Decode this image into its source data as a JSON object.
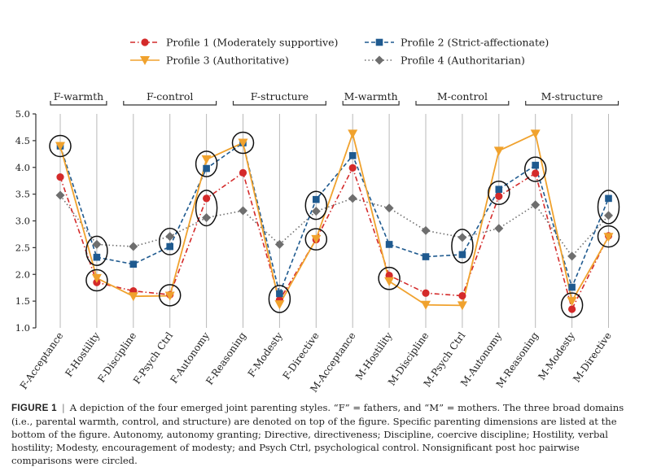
{
  "chart_data": {
    "type": "line",
    "categories": [
      "F-Acceptance",
      "F-Hostility",
      "F-Discipline",
      "F-Psych Ctrl",
      "F-Autonomy",
      "F-Reasoning",
      "F-Modesty",
      "F-Directive",
      "M-Acceptance",
      "M-Hostility",
      "M-Discipline",
      "M-Psych Ctrl",
      "M-Autonomy",
      "M-Reasoning",
      "M-Modesty",
      "M-Directive"
    ],
    "domains": [
      {
        "label": "F-warmth",
        "from": 0,
        "to": 1
      },
      {
        "label": "F-control",
        "from": 2,
        "to": 4
      },
      {
        "label": "F-structure",
        "from": 5,
        "to": 7
      },
      {
        "label": "M-warmth",
        "from": 8,
        "to": 9
      },
      {
        "label": "M-control",
        "from": 10,
        "to": 12
      },
      {
        "label": "M-structure",
        "from": 13,
        "to": 15
      }
    ],
    "ylim": [
      1.0,
      5.0
    ],
    "yticks": [
      "1.0",
      "1.5",
      "2.0",
      "2.5",
      "3.0",
      "3.5",
      "4.0",
      "4.5",
      "5.0"
    ],
    "grid": "vertical lines at categories",
    "legend_position": "top",
    "series": [
      {
        "name": "Profile 1 (Moderately supportive)",
        "color": "#d42a2a",
        "marker": "circle",
        "line": "dash-dot",
        "values": [
          3.82,
          1.85,
          1.69,
          1.62,
          3.42,
          3.9,
          1.52,
          2.65,
          3.99,
          1.98,
          1.65,
          1.6,
          3.46,
          3.89,
          1.35,
          2.72
        ]
      },
      {
        "name": "Profile 2 (Strict-affectionate)",
        "color": "#1f5a8f",
        "marker": "square",
        "line": "dashed",
        "values": [
          4.4,
          2.32,
          2.19,
          2.52,
          3.98,
          4.46,
          1.64,
          3.4,
          4.22,
          2.56,
          2.33,
          2.37,
          3.59,
          4.04,
          1.76,
          3.42
        ]
      },
      {
        "name": "Profile 3 (Authoritative)",
        "color": "#f0a22e",
        "marker": "triangle-down",
        "line": "solid",
        "values": [
          4.4,
          1.93,
          1.59,
          1.6,
          4.15,
          4.46,
          1.44,
          2.66,
          4.63,
          1.87,
          1.43,
          1.42,
          4.31,
          4.63,
          1.5,
          2.7
        ]
      },
      {
        "name": "Profile 4 (Authoritarian)",
        "color": "#6e6e6e",
        "marker": "diamond",
        "line": "dotted",
        "values": [
          3.48,
          2.56,
          2.52,
          2.71,
          3.06,
          3.19,
          2.56,
          3.18,
          3.42,
          3.24,
          2.82,
          2.69,
          2.86,
          3.3,
          2.34,
          3.1
        ]
      }
    ],
    "circled_points": [
      {
        "category": "F-Acceptance",
        "ymin": 4.4,
        "ymax": 4.4
      },
      {
        "category": "F-Hostility",
        "ymin": 2.32,
        "ymax": 2.56
      },
      {
        "category": "F-Hostility",
        "ymin": 1.85,
        "ymax": 1.93
      },
      {
        "category": "F-Psych Ctrl",
        "ymin": 2.52,
        "ymax": 2.71
      },
      {
        "category": "F-Psych Ctrl",
        "ymin": 1.6,
        "ymax": 1.62
      },
      {
        "category": "F-Autonomy",
        "ymin": 3.98,
        "ymax": 4.15
      },
      {
        "category": "F-Autonomy",
        "ymin": 3.06,
        "ymax": 3.42
      },
      {
        "category": "F-Reasoning",
        "ymin": 4.46,
        "ymax": 4.46
      },
      {
        "category": "F-Modesty",
        "ymin": 1.44,
        "ymax": 1.64
      },
      {
        "category": "F-Directive",
        "ymin": 3.18,
        "ymax": 3.4
      },
      {
        "category": "F-Directive",
        "ymin": 2.65,
        "ymax": 2.66
      },
      {
        "category": "M-Hostility",
        "ymin": 1.87,
        "ymax": 1.98
      },
      {
        "category": "M-Psych Ctrl",
        "ymin": 2.37,
        "ymax": 2.69
      },
      {
        "category": "M-Autonomy",
        "ymin": 3.46,
        "ymax": 3.59
      },
      {
        "category": "M-Reasoning",
        "ymin": 3.89,
        "ymax": 4.04
      },
      {
        "category": "M-Modesty",
        "ymin": 1.35,
        "ymax": 1.5
      },
      {
        "category": "M-Directive",
        "ymin": 3.1,
        "ymax": 3.42
      },
      {
        "category": "M-Directive",
        "ymin": 2.7,
        "ymax": 2.72
      }
    ]
  },
  "caption": {
    "label": "FIGURE 1",
    "separator": "|",
    "text": "A depiction of the four emerged joint parenting styles. “F” = fathers, and “M” = mothers. The three broad domains (i.e., parental warmth, control, and structure) are denoted on top of the figure. Specific parenting dimensions are listed at the bottom of the figure. Autonomy, autonomy granting; Directive, directiveness; Discipline, coercive discipline; Hostility, verbal hostility; Modesty, encouragement of modesty; and Psych Ctrl, psychological control. Nonsignificant post hoc pairwise comparisons were circled."
  }
}
